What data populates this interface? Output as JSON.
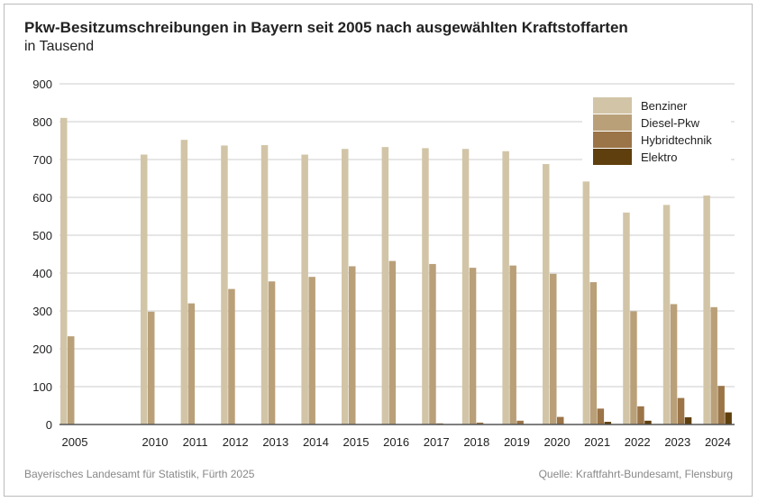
{
  "chart_data": {
    "type": "bar",
    "title": "Pkw-Besitzumschreibungen in Bayern seit 2005 nach ausgewählten Kraftstoffarten",
    "subtitle": "in Tausend",
    "categories": [
      "2005",
      "2010",
      "2011",
      "2012",
      "2013",
      "2014",
      "2015",
      "2016",
      "2017",
      "2018",
      "2019",
      "2020",
      "2021",
      "2022",
      "2023",
      "2024"
    ],
    "series": [
      {
        "name": "Benziner",
        "color": "#d2c5a7",
        "values": [
          810,
          713,
          752,
          737,
          738,
          713,
          728,
          733,
          730,
          728,
          722,
          688,
          642,
          560,
          580,
          605
        ]
      },
      {
        "name": "Diesel-Pkw",
        "color": "#b9a079",
        "values": [
          233,
          298,
          320,
          358,
          378,
          390,
          418,
          432,
          424,
          414,
          420,
          398,
          376,
          299,
          318,
          310
        ]
      },
      {
        "name": "Hybridtechnik",
        "color": "#9b7447",
        "values": [
          0,
          0,
          0,
          0,
          0,
          0,
          0,
          1,
          3,
          5,
          10,
          20,
          42,
          48,
          70,
          102
        ]
      },
      {
        "name": "Elektro",
        "color": "#5f3f0d",
        "values": [
          0,
          0,
          0,
          0,
          0,
          0,
          0,
          0,
          0,
          0,
          0,
          1,
          7,
          10,
          19,
          32
        ]
      }
    ],
    "ylim": [
      0,
      900
    ],
    "yticks": [
      0,
      100,
      200,
      300,
      400,
      500,
      600,
      700,
      800,
      900
    ],
    "grid": true,
    "legend_position": "top-right"
  },
  "footer": {
    "left": "Bayerisches Landesamt für Statistik, Fürth 2025",
    "right": "Quelle: Kraftfahrt-Bundesamt, Flensburg"
  }
}
